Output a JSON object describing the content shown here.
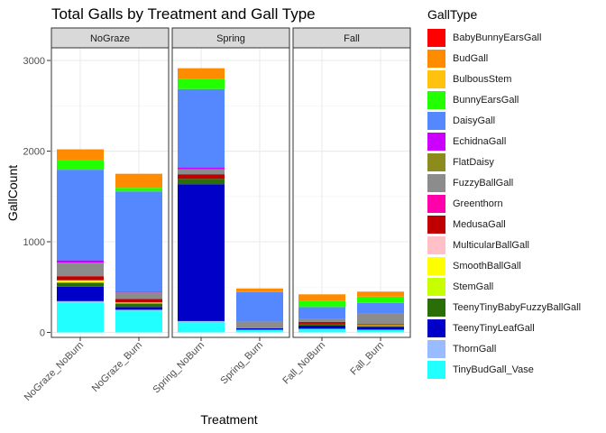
{
  "chart_data": {
    "type": "bar",
    "stacked": true,
    "title": "Total Galls by Treatment and Gall Type",
    "xlabel": "Treatment",
    "ylabel": "GallCount",
    "ylim": [
      0,
      3000
    ],
    "yticks": [
      0,
      1000,
      2000,
      3000
    ],
    "grid": true,
    "legend_title": "GallType",
    "legend_position": "right",
    "facets": [
      {
        "label": "NoGraze",
        "categories": [
          "NoGraze_NoBurn",
          "NoGraze_Burn"
        ]
      },
      {
        "label": "Spring",
        "categories": [
          "Spring_NoBurn",
          "Spring_Burn"
        ]
      },
      {
        "label": "Fall",
        "categories": [
          "Fall_NoBurn",
          "Fall_Burn"
        ]
      }
    ],
    "series": [
      {
        "name": "BabyBunnyEarsGall",
        "color": "#FF0000",
        "values": {
          "NoGraze_NoBurn": 0,
          "NoGraze_Burn": 0,
          "Spring_NoBurn": 0,
          "Spring_Burn": 0,
          "Fall_NoBurn": 0,
          "Fall_Burn": 0
        }
      },
      {
        "name": "BudGall",
        "color": "#FF8C00",
        "values": {
          "NoGraze_NoBurn": 115,
          "NoGraze_Burn": 155,
          "Spring_NoBurn": 115,
          "Spring_Burn": 40,
          "Fall_NoBurn": 70,
          "Fall_Burn": 55
        }
      },
      {
        "name": "BulbousStem",
        "color": "#FFC20E",
        "values": {
          "NoGraze_NoBurn": 0,
          "NoGraze_Burn": 0,
          "Spring_NoBurn": 0,
          "Spring_Burn": 0,
          "Fall_NoBurn": 0,
          "Fall_Burn": 0
        }
      },
      {
        "name": "BunnyEarsGall",
        "color": "#22FF00",
        "values": {
          "NoGraze_NoBurn": 110,
          "NoGraze_Burn": 40,
          "Spring_NoBurn": 115,
          "Spring_Burn": 0,
          "Fall_NoBurn": 70,
          "Fall_Burn": 70
        }
      },
      {
        "name": "DaisyGall",
        "color": "#5588FF",
        "values": {
          "NoGraze_NoBurn": 1000,
          "NoGraze_Burn": 1105,
          "Spring_NoBurn": 865,
          "Spring_Burn": 325,
          "Fall_NoBurn": 130,
          "Fall_Burn": 120
        }
      },
      {
        "name": "EchidnaGall",
        "color": "#CC00FF",
        "values": {
          "NoGraze_NoBurn": 25,
          "NoGraze_Burn": 10,
          "Spring_NoBurn": 20,
          "Spring_Burn": 0,
          "Fall_NoBurn": 0,
          "Fall_Burn": 0
        }
      },
      {
        "name": "FlatDaisy",
        "color": "#8B8B1E",
        "values": {
          "NoGraze_NoBurn": 0,
          "NoGraze_Burn": 0,
          "Spring_NoBurn": 0,
          "Spring_Burn": 0,
          "Fall_NoBurn": 0,
          "Fall_Burn": 0
        }
      },
      {
        "name": "FuzzyBallGall",
        "color": "#8C8C8C",
        "values": {
          "NoGraze_NoBurn": 150,
          "NoGraze_Burn": 70,
          "Spring_NoBurn": 55,
          "Spring_Burn": 75,
          "Fall_NoBurn": 35,
          "Fall_Burn": 115
        }
      },
      {
        "name": "Greenthorn",
        "color": "#FF00AA",
        "values": {
          "NoGraze_NoBurn": 0,
          "NoGraze_Burn": 0,
          "Spring_NoBurn": 0,
          "Spring_Burn": 0,
          "Fall_NoBurn": 0,
          "Fall_Burn": 0
        }
      },
      {
        "name": "MedusaGall",
        "color": "#C00000",
        "values": {
          "NoGraze_NoBurn": 45,
          "NoGraze_Burn": 40,
          "Spring_NoBurn": 50,
          "Spring_Burn": 0,
          "Fall_NoBurn": 20,
          "Fall_Burn": 10
        }
      },
      {
        "name": "MulticularBallGall",
        "color": "#FFC0C8",
        "values": {
          "NoGraze_NoBurn": 0,
          "NoGraze_Burn": 0,
          "Spring_NoBurn": 0,
          "Spring_Burn": 0,
          "Fall_NoBurn": 0,
          "Fall_Burn": 0
        }
      },
      {
        "name": "SmoothBallGall",
        "color": "#FFFF00",
        "values": {
          "NoGraze_NoBurn": 25,
          "NoGraze_Burn": 10,
          "Spring_NoBurn": 0,
          "Spring_Burn": 0,
          "Fall_NoBurn": 0,
          "Fall_Burn": 0
        }
      },
      {
        "name": "StemGall",
        "color": "#C8FF00",
        "values": {
          "NoGraze_NoBurn": 0,
          "NoGraze_Burn": 0,
          "Spring_NoBurn": 0,
          "Spring_Burn": 0,
          "Fall_NoBurn": 0,
          "Fall_Burn": 10
        }
      },
      {
        "name": "TeenyTinyBabyFuzzyBallGall",
        "color": "#2A6E0A",
        "values": {
          "NoGraze_NoBurn": 45,
          "NoGraze_Burn": 40,
          "Spring_NoBurn": 60,
          "Spring_Burn": 0,
          "Fall_NoBurn": 20,
          "Fall_Burn": 10
        }
      },
      {
        "name": "TeenyTinyLeafGall",
        "color": "#0000C8",
        "values": {
          "NoGraze_NoBurn": 160,
          "NoGraze_Burn": 30,
          "Spring_NoBurn": 1510,
          "Spring_Burn": 15,
          "Fall_NoBurn": 35,
          "Fall_Burn": 30
        }
      },
      {
        "name": "ThornGall",
        "color": "#99BBFF",
        "values": {
          "NoGraze_NoBurn": 15,
          "NoGraze_Burn": 10,
          "Spring_NoBurn": 10,
          "Spring_Burn": 0,
          "Fall_NoBurn": 0,
          "Fall_Burn": 0
        }
      },
      {
        "name": "TinyBudGall_Vase",
        "color": "#22FFFF",
        "values": {
          "NoGraze_NoBurn": 330,
          "NoGraze_Burn": 240,
          "Spring_NoBurn": 115,
          "Spring_Burn": 30,
          "Fall_NoBurn": 40,
          "Fall_Burn": 30
        }
      }
    ]
  }
}
